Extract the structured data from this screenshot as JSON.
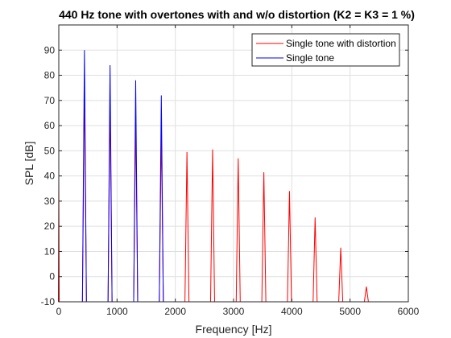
{
  "chart_data": {
    "type": "line",
    "title": "440 Hz tone with overtones with and w/o distortion (K2 = K3 = 1 %)",
    "xlabel": "Frequency [Hz]",
    "ylabel": "SPL [dB]",
    "xlim": [
      0,
      6000
    ],
    "ylim": [
      -10,
      100
    ],
    "xticks": [
      0,
      1000,
      2000,
      3000,
      4000,
      5000,
      6000
    ],
    "xtick_labels": [
      "0",
      "1000",
      "2000",
      "3000",
      "4000",
      "5000",
      "6000"
    ],
    "yticks": [
      -10,
      0,
      10,
      20,
      30,
      40,
      50,
      60,
      70,
      80,
      90
    ],
    "ytick_labels": [
      "-10",
      "0",
      "10",
      "20",
      "30",
      "40",
      "50",
      "60",
      "70",
      "80",
      "90"
    ],
    "grid": true,
    "legend_position": "top-right",
    "series": [
      {
        "name": "Single tone with distortion",
        "color": "#ff0000",
        "peaks": [
          {
            "x": 0,
            "y": 40
          },
          {
            "x": 440,
            "y": 76
          },
          {
            "x": 880,
            "y": 70
          },
          {
            "x": 1320,
            "y": 64
          },
          {
            "x": 1760,
            "y": 58
          },
          {
            "x": 2200,
            "y": 49.5
          },
          {
            "x": 2640,
            "y": 50.5
          },
          {
            "x": 3080,
            "y": 47
          },
          {
            "x": 3520,
            "y": 41.5
          },
          {
            "x": 3960,
            "y": 34
          },
          {
            "x": 4400,
            "y": 23.5
          },
          {
            "x": 4840,
            "y": 11.5
          },
          {
            "x": 5280,
            "y": -4
          }
        ]
      },
      {
        "name": "Single tone",
        "color": "#0000ff",
        "peaks": [
          {
            "x": 440,
            "y": 90
          },
          {
            "x": 880,
            "y": 84
          },
          {
            "x": 1320,
            "y": 78
          },
          {
            "x": 1760,
            "y": 72
          }
        ]
      }
    ]
  }
}
